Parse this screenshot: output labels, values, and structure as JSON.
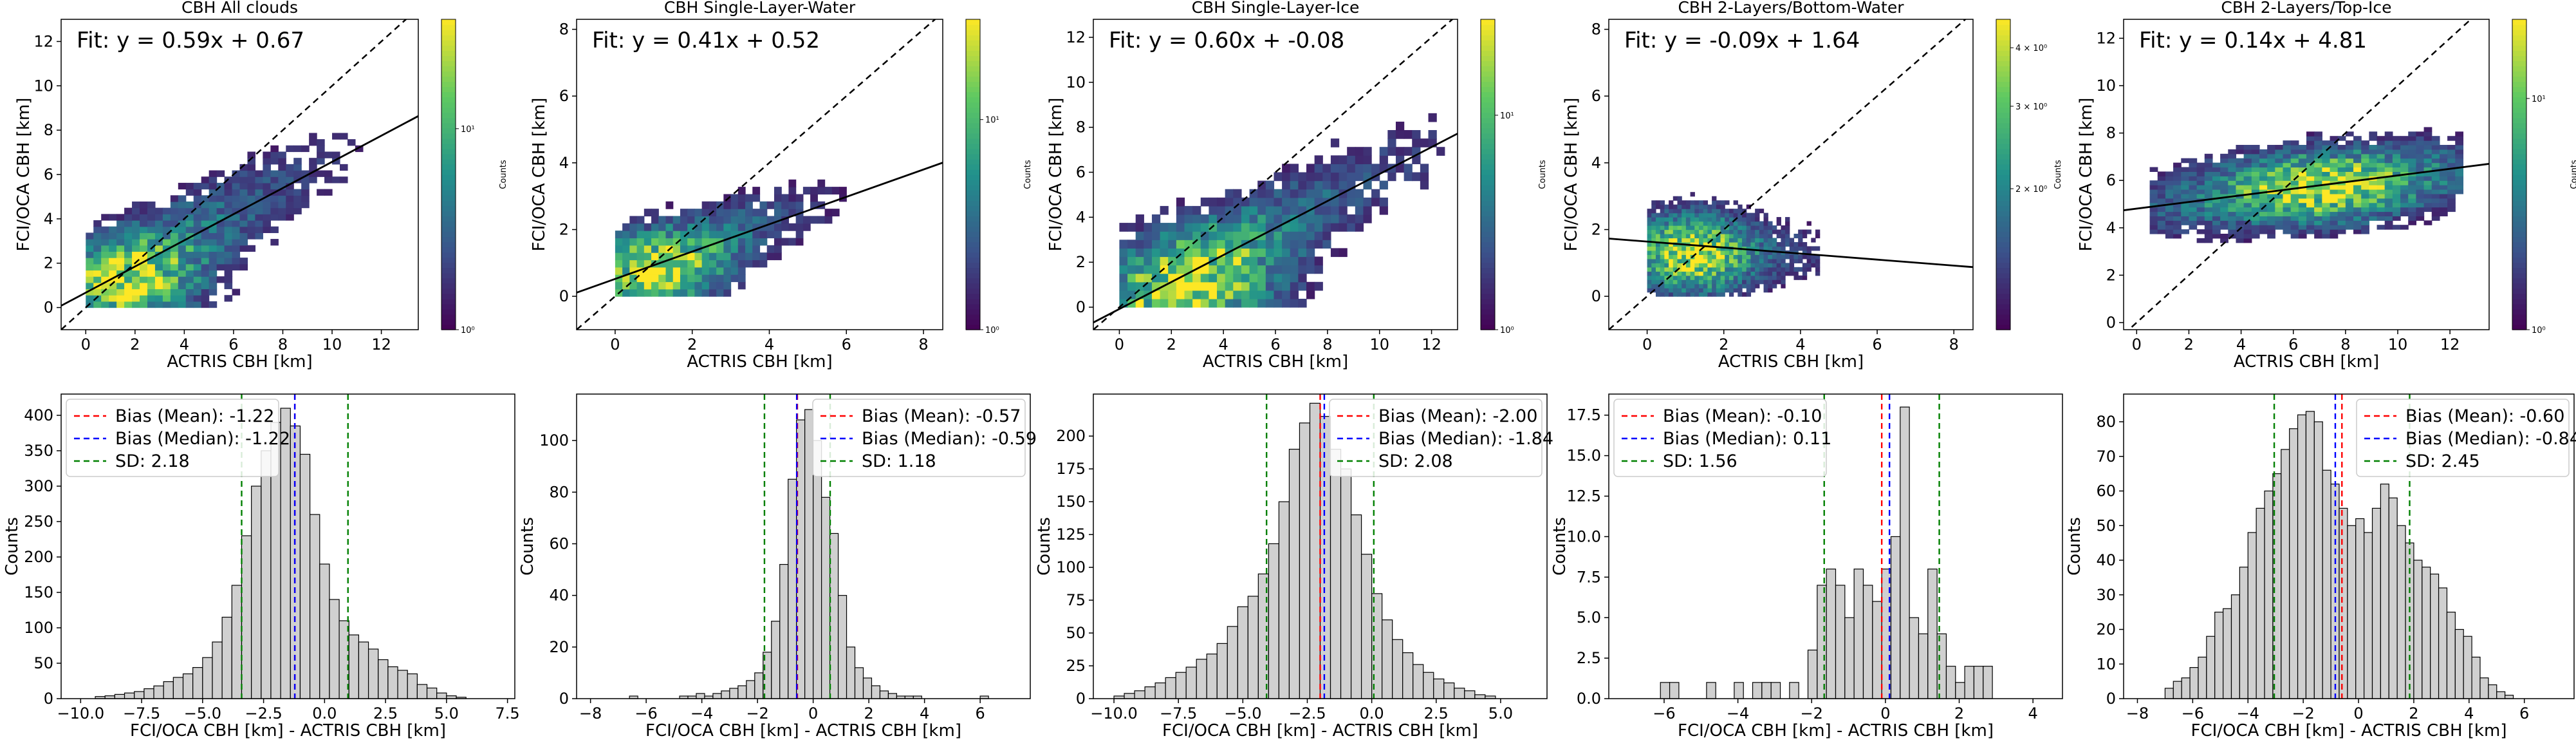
{
  "colors": {
    "mean_line": "#ff0000",
    "median_line": "#0000ff",
    "sd_line": "#008000",
    "bar_fill": "#d0d0d0",
    "bar_edge": "#000000",
    "fit_line": "#000000",
    "one_to_one": "#000000",
    "viridis": [
      "#440154",
      "#3b528b",
      "#21918c",
      "#5ec962",
      "#fde725"
    ]
  },
  "chart_data": [
    {
      "type": "heatmap",
      "title": "CBH All clouds",
      "xlabel": "ACTRIS CBH [km]",
      "ylabel": "FCI/OCA CBH [km]",
      "xlim": [
        -1,
        13.5
      ],
      "ylim": [
        -1,
        13
      ],
      "xticks": [
        0,
        2,
        4,
        6,
        8,
        10,
        12
      ],
      "yticks": [
        0,
        2,
        4,
        6,
        8,
        10,
        12
      ],
      "fit_text": "Fit: y = 0.59x + 0.67",
      "fit": {
        "slope": 0.59,
        "intercept": 0.67
      },
      "colorbar": {
        "label": "Counts",
        "scale": "log",
        "range": [
          1,
          35
        ],
        "ticks": [
          {
            "value": 1,
            "label": "10⁰"
          },
          {
            "value": 10,
            "label": "10¹"
          }
        ]
      },
      "density": {
        "x_range": [
          0,
          12.5
        ],
        "y_range": [
          0,
          9
        ],
        "center": [
          1.8,
          1.0
        ],
        "spread": [
          2.2,
          1.5
        ],
        "peak": 35,
        "slope": 0.59,
        "intercept": 0.67,
        "scatter": 1.6
      }
    },
    {
      "type": "heatmap",
      "title": "CBH Single-Layer-Water",
      "xlabel": "ACTRIS CBH [km]",
      "ylabel": "FCI/OCA CBH [km]",
      "xlim": [
        -1,
        8.5
      ],
      "ylim": [
        -1,
        8.3
      ],
      "xticks": [
        0,
        2,
        4,
        6,
        8
      ],
      "yticks": [
        0,
        2,
        4,
        6,
        8
      ],
      "fit_text": "Fit: y = 0.41x + 0.52",
      "fit": {
        "slope": 0.41,
        "intercept": 0.52
      },
      "colorbar": {
        "label": "Counts",
        "scale": "log",
        "range": [
          1,
          30
        ],
        "ticks": [
          {
            "value": 1,
            "label": "10⁰"
          },
          {
            "value": 10,
            "label": "10¹"
          }
        ]
      },
      "density": {
        "x_range": [
          0,
          7.5
        ],
        "y_range": [
          0,
          7
        ],
        "center": [
          1.2,
          0.8
        ],
        "spread": [
          1.1,
          0.8
        ],
        "peak": 30,
        "slope": 0.41,
        "intercept": 0.52,
        "scatter": 0.9
      }
    },
    {
      "type": "heatmap",
      "title": "CBH Single-Layer-Ice",
      "xlabel": "ACTRIS CBH [km]",
      "ylabel": "FCI/OCA CBH [km]",
      "xlim": [
        -1,
        13
      ],
      "ylim": [
        -1,
        12.8
      ],
      "xticks": [
        0,
        2,
        4,
        6,
        8,
        10,
        12
      ],
      "yticks": [
        0,
        2,
        4,
        6,
        8,
        10,
        12
      ],
      "fit_text": "Fit: y = 0.60x + -0.08",
      "fit": {
        "slope": 0.6,
        "intercept": -0.08
      },
      "colorbar": {
        "label": "Counts",
        "scale": "log",
        "range": [
          1,
          28
        ],
        "ticks": [
          {
            "value": 1,
            "label": "10⁰"
          },
          {
            "value": 10,
            "label": "10¹"
          }
        ]
      },
      "density": {
        "x_range": [
          0,
          12.5
        ],
        "y_range": [
          0,
          12
        ],
        "center": [
          3.0,
          0.8
        ],
        "spread": [
          2.4,
          1.8
        ],
        "peak": 28,
        "slope": 0.6,
        "intercept": -0.08,
        "scatter": 1.7
      }
    },
    {
      "type": "heatmap",
      "title": "CBH 2-Layers/Bottom-Water",
      "xlabel": "ACTRIS CBH [km]",
      "ylabel": "FCI/OCA CBH [km]",
      "xlim": [
        -1,
        8.5
      ],
      "ylim": [
        -1,
        8.3
      ],
      "xticks": [
        0,
        2,
        4,
        6,
        8
      ],
      "yticks": [
        0,
        2,
        4,
        6,
        8
      ],
      "fit_text": "Fit: y = -0.09x + 1.64",
      "fit": {
        "slope": -0.09,
        "intercept": 1.64
      },
      "colorbar": {
        "label": "Counts",
        "scale": "log",
        "range": [
          1,
          4.6
        ],
        "ticks": [
          {
            "value": 2,
            "label": "2 × 10⁰"
          },
          {
            "value": 3,
            "label": "3 × 10⁰"
          },
          {
            "value": 4,
            "label": "4 × 10⁰"
          }
        ]
      },
      "density": {
        "x_range": [
          0,
          4.5
        ],
        "y_range": [
          0,
          4
        ],
        "center": [
          1.2,
          1.3
        ],
        "spread": [
          0.9,
          0.9
        ],
        "peak": 4.6,
        "slope": 0.0,
        "intercept": 1.3,
        "scatter": 0.8
      }
    },
    {
      "type": "heatmap",
      "title": "CBH 2-Layers/Top-Ice",
      "xlabel": "ACTRIS CBH [km]",
      "ylabel": "FCI/OCA CBH [km]",
      "xlim": [
        -0.5,
        13.5
      ],
      "ylim": [
        -0.3,
        12.8
      ],
      "xticks": [
        0,
        2,
        4,
        6,
        8,
        10,
        12
      ],
      "yticks": [
        0,
        2,
        4,
        6,
        8,
        10,
        12
      ],
      "fit_text": "Fit: y = 0.14x + 4.81",
      "fit": {
        "slope": 0.14,
        "intercept": 4.81
      },
      "colorbar": {
        "label": "Counts",
        "scale": "log",
        "range": [
          1,
          22
        ],
        "ticks": [
          {
            "value": 1,
            "label": "10⁰"
          },
          {
            "value": 10,
            "label": "10¹"
          }
        ]
      },
      "density": {
        "x_range": [
          0.5,
          12.5
        ],
        "y_range": [
          3,
          9
        ],
        "center": [
          7.0,
          5.7
        ],
        "spread": [
          2.5,
          1.1
        ],
        "peak": 22,
        "slope": 0.14,
        "intercept": 4.81,
        "scatter": 1.1
      }
    },
    {
      "type": "bar",
      "ylabel": "Counts",
      "xlabel": "FCI/OCA CBH [km] - ACTRIS CBH [km]",
      "xlim": [
        -10.8,
        7.8
      ],
      "ylim": [
        0,
        430
      ],
      "xticks": [
        -10.0,
        -7.5,
        -5.0,
        -2.5,
        0.0,
        2.5,
        5.0,
        7.5
      ],
      "xtick_labels": [
        "−10.0",
        "−7.5",
        "−5.0",
        "−2.5",
        "0.0",
        "2.5",
        "5.0",
        "7.5"
      ],
      "yticks": [
        0,
        50,
        100,
        150,
        200,
        250,
        300,
        350,
        400
      ],
      "legend_position": "top-left",
      "mean": -1.22,
      "median": -1.22,
      "sd": 2.18,
      "legend": [
        "Bias (Mean): -1.22",
        "Bias (Median): -1.22",
        "SD: 2.18"
      ],
      "bin_start": -9.4,
      "bin_width": 0.4,
      "counts": [
        3,
        4,
        6,
        8,
        10,
        14,
        18,
        24,
        30,
        35,
        44,
        58,
        80,
        115,
        160,
        230,
        300,
        350,
        390,
        410,
        385,
        345,
        260,
        190,
        140,
        110,
        90,
        80,
        70,
        55,
        45,
        40,
        35,
        20,
        15,
        8,
        4,
        2
      ]
    },
    {
      "type": "bar",
      "ylabel": "Counts",
      "xlabel": "FCI/OCA CBH [km] - ACTRIS CBH [km]",
      "xlim": [
        -8.5,
        7.8
      ],
      "ylim": [
        0,
        118
      ],
      "xticks": [
        -8,
        -6,
        -4,
        -2,
        0,
        2,
        4,
        6
      ],
      "xtick_labels": [
        "−8",
        "−6",
        "−4",
        "−2",
        "0",
        "2",
        "4",
        "6"
      ],
      "yticks": [
        0,
        20,
        40,
        60,
        80,
        100
      ],
      "legend_position": "top-right",
      "mean": -0.57,
      "median": -0.59,
      "sd": 1.18,
      "legend": [
        "Bias (Mean): -0.57",
        "Bias (Median): -0.59",
        "SD: 1.18"
      ],
      "bin_start": -6.6,
      "bin_width": 0.3,
      "counts": [
        1,
        0,
        0,
        0,
        0,
        0,
        1,
        1,
        2,
        1,
        2,
        3,
        4,
        5,
        7,
        10,
        18,
        30,
        52,
        85,
        108,
        112,
        100,
        78,
        64,
        40,
        20,
        12,
        8,
        5,
        3,
        2,
        1,
        1,
        1,
        0,
        0,
        0,
        0,
        0,
        0,
        0,
        1
      ]
    },
    {
      "type": "bar",
      "ylabel": "Counts",
      "xlabel": "FCI/OCA CBH [km] - ACTRIS CBH [km]",
      "xlim": [
        -10.8,
        6.8
      ],
      "ylim": [
        0,
        232
      ],
      "xticks": [
        -10.0,
        -7.5,
        -5.0,
        -2.5,
        0.0,
        2.5,
        5.0
      ],
      "xtick_labels": [
        "−10.0",
        "−7.5",
        "−5.0",
        "−2.5",
        "0.0",
        "2.5",
        "5.0"
      ],
      "yticks": [
        0,
        25,
        50,
        75,
        100,
        125,
        150,
        175,
        200
      ],
      "legend_position": "top-right",
      "mean": -2.0,
      "median": -1.84,
      "sd": 2.08,
      "legend": [
        "Bias (Mean): -2.00",
        "Bias (Median): -1.84",
        "SD: 2.08"
      ],
      "bin_start": -10.0,
      "bin_width": 0.4,
      "counts": [
        2,
        4,
        6,
        9,
        12,
        16,
        20,
        24,
        30,
        34,
        42,
        55,
        70,
        78,
        95,
        118,
        150,
        190,
        210,
        225,
        215,
        190,
        175,
        140,
        110,
        80,
        60,
        45,
        35,
        26,
        20,
        15,
        12,
        8,
        6,
        3,
        2
      ]
    },
    {
      "type": "bar",
      "ylabel": "Counts",
      "xlabel": "FCI/OCA CBH [km] - ACTRIS CBH [km]",
      "xlim": [
        -7.5,
        4.8
      ],
      "ylim": [
        0,
        18.8
      ],
      "xticks": [
        -6,
        -4,
        -2,
        0,
        2,
        4
      ],
      "xtick_labels": [
        "−6",
        "−4",
        "−2",
        "0",
        "2",
        "4"
      ],
      "yticks": [
        0.0,
        2.5,
        5.0,
        7.5,
        10.0,
        12.5,
        15.0,
        17.5
      ],
      "ytick_labels": [
        "0.0",
        "2.5",
        "5.0",
        "7.5",
        "10.0",
        "12.5",
        "15.0",
        "17.5"
      ],
      "legend_position": "top-left",
      "mean": -0.1,
      "median": 0.11,
      "sd": 1.56,
      "legend": [
        "Bias (Mean): -0.10",
        "Bias (Median): 0.11",
        "SD: 1.56"
      ],
      "bin_start": -6.1,
      "bin_width": 0.25,
      "counts": [
        1,
        1,
        0,
        0,
        0,
        1,
        0,
        0,
        1,
        0,
        1,
        1,
        1,
        0,
        1,
        0,
        3,
        7,
        8,
        7,
        5,
        8,
        7,
        6,
        8,
        10,
        18,
        5,
        4,
        8,
        4,
        2,
        1,
        2,
        2,
        2
      ]
    },
    {
      "type": "bar",
      "ylabel": "Counts",
      "xlabel": "FCI/OCA CBH [km] - ACTRIS CBH [km]",
      "xlim": [
        -8.5,
        7.8
      ],
      "ylim": [
        0,
        88
      ],
      "xticks": [
        -8,
        -6,
        -4,
        -2,
        0,
        2,
        4,
        6
      ],
      "xtick_labels": [
        "−8",
        "−6",
        "−4",
        "−2",
        "0",
        "2",
        "4",
        "6"
      ],
      "yticks": [
        0,
        10,
        20,
        30,
        40,
        50,
        60,
        70,
        80
      ],
      "legend_position": "top-right",
      "mean": -0.6,
      "median": -0.84,
      "sd": 2.45,
      "legend": [
        "Bias (Mean): -0.60",
        "Bias (Median): -0.84",
        "SD: 2.45"
      ],
      "bin_start": -7.0,
      "bin_width": 0.3,
      "counts": [
        3,
        5,
        6,
        9,
        12,
        18,
        25,
        26,
        30,
        38,
        48,
        55,
        60,
        65,
        72,
        78,
        82,
        83,
        80,
        66,
        62,
        55,
        50,
        52,
        48,
        55,
        62,
        58,
        50,
        45,
        40,
        38,
        36,
        32,
        25,
        20,
        18,
        12,
        6,
        4,
        2,
        1
      ]
    }
  ]
}
